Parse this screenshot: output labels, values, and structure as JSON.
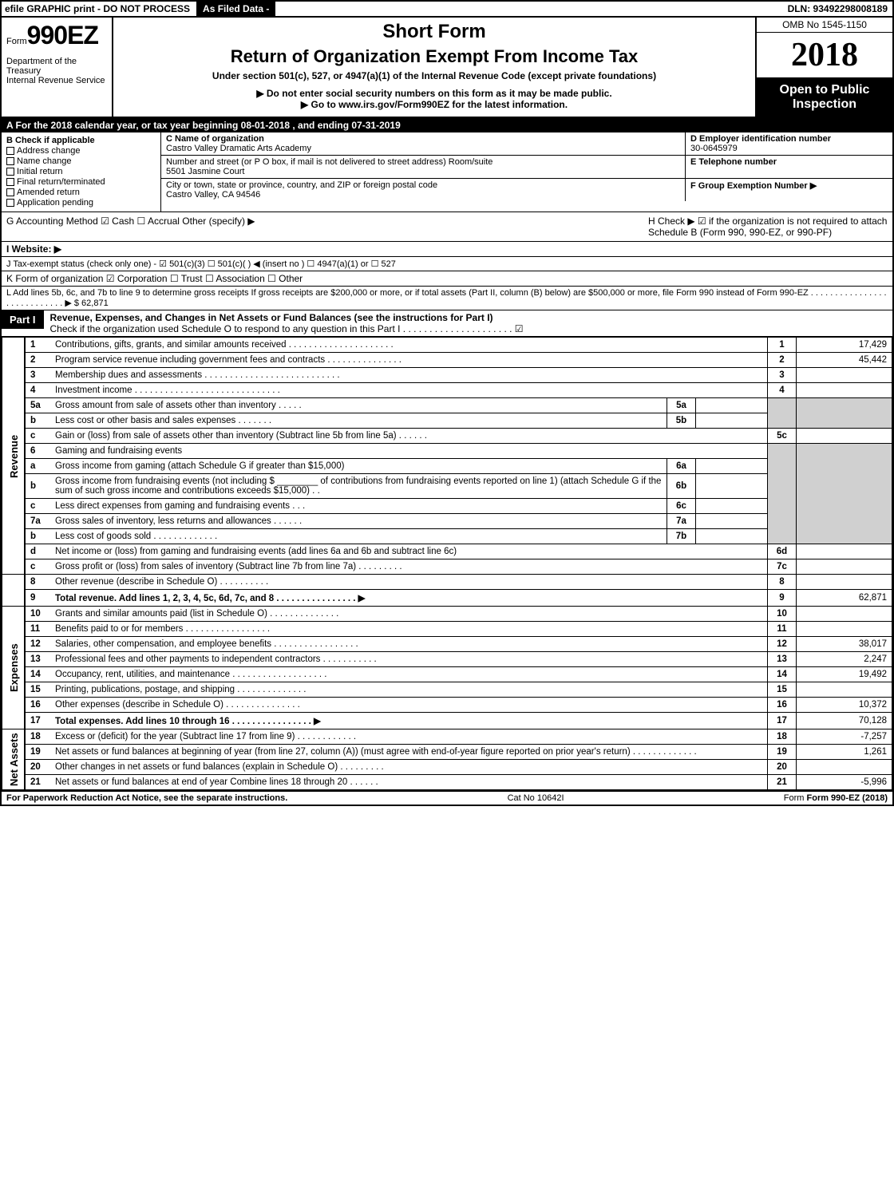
{
  "topbar": {
    "efile": "efile GRAPHIC print - DO NOT PROCESS",
    "asfiled": "As Filed Data -",
    "dln": "DLN: 93492298008189"
  },
  "header": {
    "form_prefix": "Form",
    "form_number": "990EZ",
    "dept1": "Department of the Treasury",
    "dept2": "Internal Revenue Service",
    "short_form": "Short Form",
    "return_title": "Return of Organization Exempt From Income Tax",
    "under_section": "Under section 501(c), 527, or 4947(a)(1) of the Internal Revenue Code (except private foundations)",
    "donot": "▶ Do not enter social security numbers on this form as it may be made public.",
    "goto": "▶ Go to www.irs.gov/Form990EZ for the latest information.",
    "omb": "OMB No 1545-1150",
    "year": "2018",
    "opento": "Open to Public Inspection"
  },
  "rowA": "A  For the 2018 calendar year, or tax year beginning 08-01-2018           , and ending 07-31-2019",
  "sectionB": {
    "title": "B  Check if applicable",
    "items": [
      "Address change",
      "Name change",
      "Initial return",
      "Final return/terminated",
      "Amended return",
      "Application pending"
    ]
  },
  "sectionC": {
    "label": "C Name of organization",
    "name": "Castro Valley Dramatic Arts Academy",
    "addr_label": "Number and street (or P O box, if mail is not delivered to street address)  Room/suite",
    "addr": "5501 Jasmine Court",
    "city_label": "City or town, state or province, country, and ZIP or foreign postal code",
    "city": "Castro Valley, CA  94546"
  },
  "sectionD": {
    "label": "D Employer identification number",
    "val": "30-0645979"
  },
  "sectionE": {
    "label": "E Telephone number",
    "val": ""
  },
  "sectionF": {
    "label": "F Group Exemption Number   ▶",
    "val": ""
  },
  "rowG": {
    "label": "G Accounting Method    ☑ Cash   ☐ Accrual   Other (specify) ▶",
    "h": "H   Check ▶   ☑  if the organization is not required to attach Schedule B (Form 990, 990-EZ, or 990-PF)"
  },
  "rowI": "I Website: ▶",
  "rowJ": "J Tax-exempt status (check only one) - ☑ 501(c)(3)  ☐ 501(c)( ) ◀ (insert no ) ☐ 4947(a)(1) or ☐ 527",
  "rowK": "K Form of organization    ☑ Corporation   ☐ Trust   ☐ Association   ☐ Other",
  "rowL": {
    "text": "L Add lines 5b, 6c, and 7b to line 9 to determine gross receipts  If gross receipts are $200,000 or more, or if total assets (Part II, column (B) below) are $500,000 or more, file Form 990 instead of Form 990-EZ . . . . . . . . . . . . . . . . . . . . . . . . . . . .  ▶ $",
    "val": "62,871"
  },
  "partI": {
    "label": "Part I",
    "title": "Revenue, Expenses, and Changes in Net Assets or Fund Balances (see the instructions for Part I)",
    "sub": "Check if the organization used Schedule O to respond to any question in this Part I . . . . . . . . . . . . . . . . . . . . .  ☑"
  },
  "sideLabels": {
    "rev": "Revenue",
    "exp": "Expenses",
    "na": "Net Assets"
  },
  "lines": {
    "l1": {
      "n": "1",
      "d": "Contributions, gifts, grants, and similar amounts received . . . . . . . . . . . . . . . . . . . . .",
      "c": "1",
      "v": "17,429"
    },
    "l2": {
      "n": "2",
      "d": "Program service revenue including government fees and contracts . . . . . . . . . . . . . . .",
      "c": "2",
      "v": "45,442"
    },
    "l3": {
      "n": "3",
      "d": "Membership dues and assessments . . . . . . . . . . . . . . . . . . . . . . . . . . .",
      "c": "3",
      "v": ""
    },
    "l4": {
      "n": "4",
      "d": "Investment income . . . . . . . . . . . . . . . . . . . . . . . . . . . . .",
      "c": "4",
      "v": ""
    },
    "l5a": {
      "n": "5a",
      "d": "Gross amount from sale of assets other than inventory . . . . .",
      "sc": "5a",
      "sv": ""
    },
    "l5b": {
      "n": "b",
      "d": "Less  cost or other basis and sales expenses . . . . . . .",
      "sc": "5b",
      "sv": ""
    },
    "l5c": {
      "n": "c",
      "d": "Gain or (loss) from sale of assets other than inventory (Subtract line 5b from line 5a) . . . . . .",
      "c": "5c",
      "v": ""
    },
    "l6": {
      "n": "6",
      "d": "Gaming and fundraising events"
    },
    "l6a": {
      "n": "a",
      "d": "Gross income from gaming (attach Schedule G if greater than $15,000)",
      "sc": "6a",
      "sv": ""
    },
    "l6b": {
      "n": "b",
      "d": "Gross income from fundraising events (not including $ ________ of contributions from fundraising events reported on line 1) (attach Schedule G if the sum of such gross income and contributions exceeds $15,000)   . .",
      "sc": "6b",
      "sv": ""
    },
    "l6c": {
      "n": "c",
      "d": "Less  direct expenses from gaming and fundraising events    . . .",
      "sc": "6c",
      "sv": ""
    },
    "l6d": {
      "n": "d",
      "d": "Net income or (loss) from gaming and fundraising events (add lines 6a and 6b and subtract line 6c)",
      "c": "6d",
      "v": ""
    },
    "l7a": {
      "n": "7a",
      "d": "Gross sales of inventory, less returns and allowances . . . . . .",
      "sc": "7a",
      "sv": ""
    },
    "l7b": {
      "n": "b",
      "d": "Less  cost of goods sold         . . . . . . . . . . . . .",
      "sc": "7b",
      "sv": ""
    },
    "l7c": {
      "n": "c",
      "d": "Gross profit or (loss) from sales of inventory (Subtract line 7b from line 7a) . . . . . . . . .",
      "c": "7c",
      "v": ""
    },
    "l8": {
      "n": "8",
      "d": "Other revenue (describe in Schedule O)                 . . . . . . . . . .",
      "c": "8",
      "v": ""
    },
    "l9": {
      "n": "9",
      "d": "Total revenue. Add lines 1, 2, 3, 4, 5c, 6d, 7c, and 8 . . . . . . . . . . . . . . . .  ▶",
      "c": "9",
      "v": "62,871"
    },
    "l10": {
      "n": "10",
      "d": "Grants and similar amounts paid (list in Schedule O)        . . . . . . . . . . . . . .",
      "c": "10",
      "v": ""
    },
    "l11": {
      "n": "11",
      "d": "Benefits paid to or for members             . . . . . . . . . . . . . . . . .",
      "c": "11",
      "v": ""
    },
    "l12": {
      "n": "12",
      "d": "Salaries, other compensation, and employee benefits . . . . . . . . . . . . . . . . .",
      "c": "12",
      "v": "38,017"
    },
    "l13": {
      "n": "13",
      "d": "Professional fees and other payments to independent contractors . . . . . . . . . . .",
      "c": "13",
      "v": "2,247"
    },
    "l14": {
      "n": "14",
      "d": "Occupancy, rent, utilities, and maintenance . . . . . . . . . . . . . . . . . . .",
      "c": "14",
      "v": "19,492"
    },
    "l15": {
      "n": "15",
      "d": "Printing, publications, postage, and shipping          . . . . . . . . . . . . . .",
      "c": "15",
      "v": ""
    },
    "l16": {
      "n": "16",
      "d": "Other expenses (describe in Schedule O)           . . . . . . . . . . . . . . .",
      "c": "16",
      "v": "10,372"
    },
    "l17": {
      "n": "17",
      "d": "Total expenses. Add lines 10 through 16     . . . . . . . . . . . . . . . .  ▶",
      "c": "17",
      "v": "70,128"
    },
    "l18": {
      "n": "18",
      "d": "Excess or (deficit) for the year (Subtract line 17 from line 9)    . . . . . . . . . . . .",
      "c": "18",
      "v": "-7,257"
    },
    "l19": {
      "n": "19",
      "d": "Net assets or fund balances at beginning of year (from line 27, column (A)) (must agree with end-of-year figure reported on prior year's return)          . . . . . . . . . . . . .",
      "c": "19",
      "v": "1,261"
    },
    "l20": {
      "n": "20",
      "d": "Other changes in net assets or fund balances (explain in Schedule O)    . . . . . . . . .",
      "c": "20",
      "v": ""
    },
    "l21": {
      "n": "21",
      "d": "Net assets or fund balances at end of year  Combine lines 18 through 20      . . . . . .",
      "c": "21",
      "v": "-5,996"
    }
  },
  "footer": {
    "left": "For Paperwork Reduction Act Notice, see the separate instructions.",
    "center": "Cat No 10642I",
    "right": "Form 990-EZ (2018)"
  }
}
